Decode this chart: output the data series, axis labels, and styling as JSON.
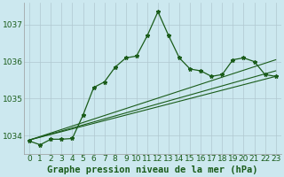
{
  "bg_color": "#cce8ef",
  "grid_color": "#aaccbb",
  "line_color": "#1a5c1a",
  "xlabel": "Graphe pression niveau de la mer (hPa)",
  "ylim": [
    1033.5,
    1037.6
  ],
  "xlim": [
    -0.5,
    23.5
  ],
  "yticks": [
    1034,
    1035,
    1036,
    1037
  ],
  "xticks": [
    0,
    1,
    2,
    3,
    4,
    5,
    6,
    7,
    8,
    9,
    10,
    11,
    12,
    13,
    14,
    15,
    16,
    17,
    18,
    19,
    20,
    21,
    22,
    23
  ],
  "series1_x": [
    0,
    1,
    2,
    3,
    4,
    5,
    6,
    7,
    8,
    9,
    10,
    11,
    12,
    13,
    14,
    15,
    16,
    17,
    18,
    19,
    20,
    21,
    22,
    23
  ],
  "series1_y": [
    1033.85,
    1033.75,
    1033.9,
    1033.9,
    1033.92,
    1034.55,
    1035.3,
    1035.45,
    1035.85,
    1036.1,
    1036.15,
    1036.7,
    1037.35,
    1036.7,
    1036.1,
    1035.8,
    1035.75,
    1035.6,
    1035.65,
    1036.05,
    1036.1,
    1036.0,
    1035.65,
    1035.6
  ],
  "series2_x": [
    0,
    23
  ],
  "series2_y": [
    1033.88,
    1035.6
  ],
  "series3_x": [
    0,
    23
  ],
  "series3_y": [
    1033.88,
    1035.75
  ],
  "series4_x": [
    0,
    23
  ],
  "series4_y": [
    1033.88,
    1036.05
  ],
  "tick_fontsize": 6.5,
  "xlabel_fontsize": 7.5
}
